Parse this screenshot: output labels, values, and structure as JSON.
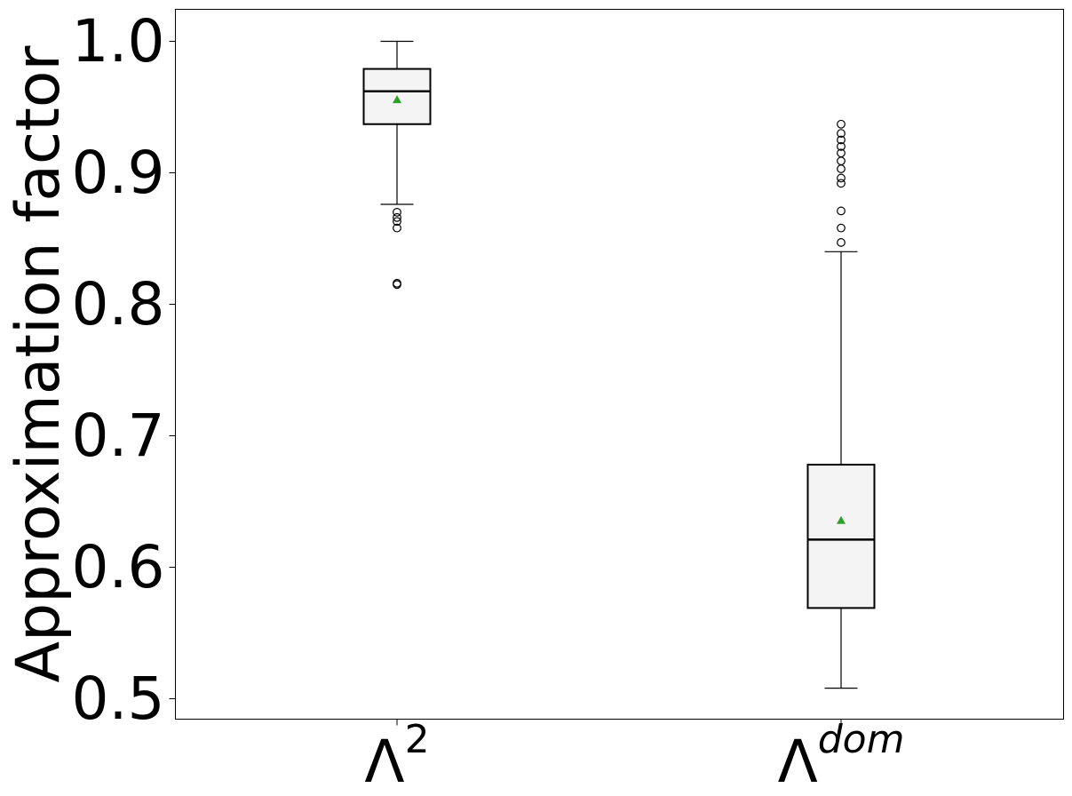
{
  "chart_data": {
    "type": "box",
    "ylabel": "Approximation factor",
    "ylim": [
      0.476,
      1.025
    ],
    "yticks": [
      0.5,
      0.6,
      0.7,
      0.8,
      0.9,
      1.0
    ],
    "ytick_labels": [
      "0.5",
      "0.6",
      "0.7",
      "0.8",
      "0.9",
      "1.0"
    ],
    "grid": false,
    "legend": "none",
    "boxes": [
      {
        "label_base": "Λ",
        "label_sup": "2",
        "whisker_low": 0.876,
        "q1": 0.937,
        "median": 0.962,
        "q3": 0.979,
        "whisker_high": 1.0,
        "mean": 0.956,
        "outliers": [
          0.87,
          0.866,
          0.863,
          0.858,
          0.815,
          0.816
        ]
      },
      {
        "label_base": "Λ",
        "label_sup": "dom",
        "whisker_low": 0.508,
        "q1": 0.569,
        "median": 0.621,
        "q3": 0.678,
        "whisker_high": 0.84,
        "mean": 0.636,
        "outliers": [
          0.847,
          0.858,
          0.871,
          0.892,
          0.896,
          0.903,
          0.909,
          0.915,
          0.92,
          0.925,
          0.93,
          0.937
        ]
      }
    ],
    "colors": {
      "box_fill": "#f4f4f4",
      "box_edge": "#000000",
      "median": "#000000",
      "mean_marker": "#2ca02c",
      "outlier": "#000000"
    }
  }
}
